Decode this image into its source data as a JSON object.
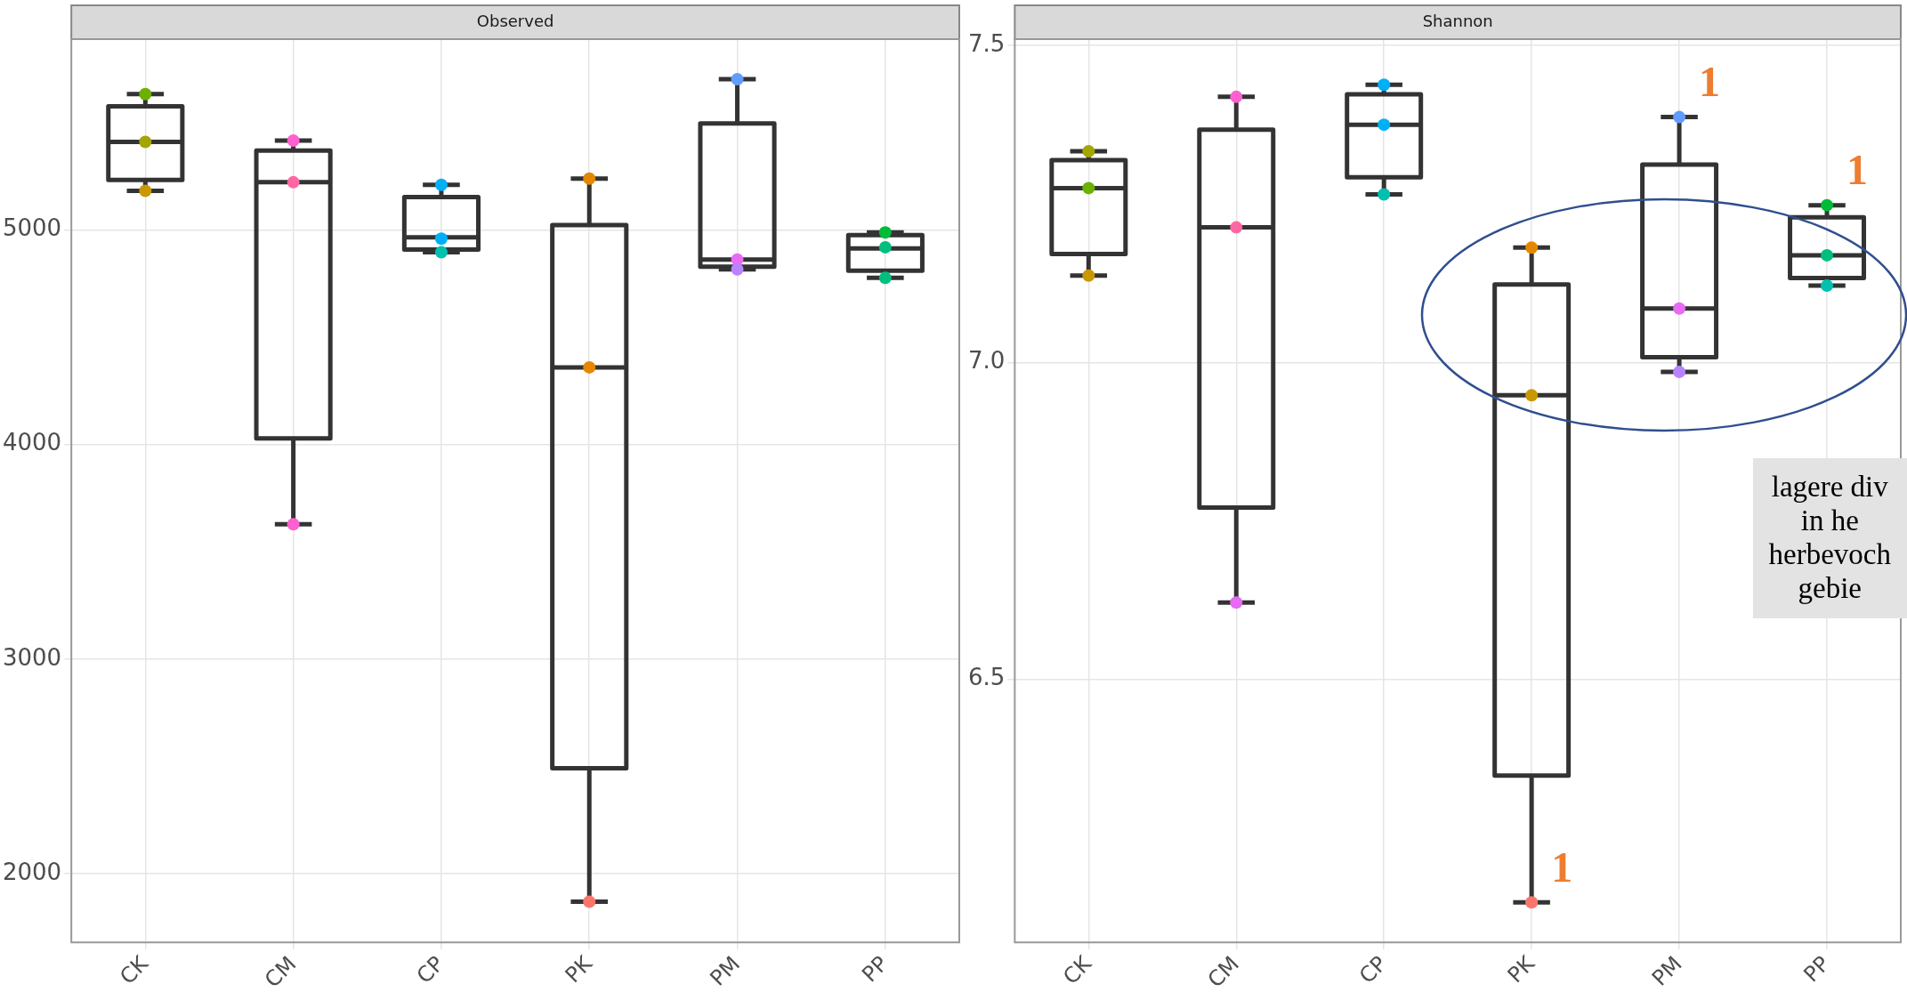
{
  "chart_data": [
    {
      "type": "box",
      "title": "Observed",
      "categories": [
        "CK",
        "CM",
        "CP",
        "PK",
        "PM",
        "PP"
      ],
      "boxes": [
        {
          "low": 5183,
          "q1": 5234,
          "median": 5411,
          "q3": 5577,
          "high": 5634
        },
        {
          "low": 3629,
          "q1": 4029,
          "median": 5223,
          "q3": 5371,
          "high": 5417
        },
        {
          "low": 4897,
          "q1": 4909,
          "median": 4966,
          "q3": 5154,
          "high": 5211
        },
        {
          "low": 1869,
          "q1": 2491,
          "median": 4360,
          "q3": 5023,
          "high": 5240
        },
        {
          "low": 4817,
          "q1": 4829,
          "median": 4863,
          "q3": 5497,
          "high": 5703
        },
        {
          "low": 4777,
          "q1": 4811,
          "median": 4914,
          "q3": 4977,
          "high": 4989
        }
      ],
      "series": [
        {
          "type": "scatter",
          "x": [
            "CK",
            "CK",
            "CK",
            "CM",
            "CM",
            "CM",
            "CP",
            "CP",
            "CP",
            "PK",
            "PK",
            "PK",
            "PM",
            "PM",
            "PM",
            "PP",
            "PP",
            "PP"
          ],
          "values": [
            5634,
            5411,
            5183,
            5417,
            5223,
            3629,
            5211,
            4960,
            4897,
            5240,
            4360,
            1869,
            5703,
            4863,
            4817,
            4989,
            4920,
            4777
          ],
          "colors": [
            "#6bb100",
            "#a3a500",
            "#c99800",
            "#fd61d1",
            "#ff67a4",
            "#fd61d1",
            "#00b0f6",
            "#00b0f6",
            "#00c0af",
            "#e58700",
            "#e58700",
            "#f8766d",
            "#619cff",
            "#e76bf3",
            "#b983ff",
            "#00ba38",
            "#00bf7d",
            "#00bf7d"
          ]
        }
      ],
      "ylim": [
        1680,
        5890
      ],
      "yticks": [
        2000,
        3000,
        4000,
        5000
      ],
      "grid": true,
      "marker": "circle"
    },
    {
      "type": "box",
      "title": "Shannon",
      "categories": [
        "CK",
        "CM",
        "CP",
        "PK",
        "PM",
        "PP"
      ],
      "boxes": [
        {
          "low": 7.137,
          "q1": 7.171,
          "median": 7.275,
          "q3": 7.319,
          "high": 7.333
        },
        {
          "low": 6.621,
          "q1": 6.771,
          "median": 7.213,
          "q3": 7.367,
          "high": 7.419
        },
        {
          "low": 7.265,
          "q1": 7.292,
          "median": 7.375,
          "q3": 7.423,
          "high": 7.438
        },
        {
          "low": 6.148,
          "q1": 6.348,
          "median": 6.948,
          "q3": 7.123,
          "high": 7.181
        },
        {
          "low": 6.985,
          "q1": 7.008,
          "median": 7.085,
          "q3": 7.312,
          "high": 7.387
        },
        {
          "low": 7.121,
          "q1": 7.133,
          "median": 7.169,
          "q3": 7.229,
          "high": 7.248
        }
      ],
      "series": [
        {
          "type": "scatter",
          "x": [
            "CK",
            "CK",
            "CK",
            "CM",
            "CM",
            "CM",
            "CP",
            "CP",
            "CP",
            "PK",
            "PK",
            "PK",
            "PM",
            "PM",
            "PM",
            "PP",
            "PP",
            "PP"
          ],
          "values": [
            7.333,
            7.275,
            7.137,
            7.419,
            7.213,
            6.621,
            7.438,
            7.375,
            7.265,
            7.181,
            6.948,
            6.148,
            7.387,
            7.085,
            6.985,
            7.248,
            7.169,
            7.121
          ],
          "colors": [
            "#a3a500",
            "#6bb100",
            "#c99800",
            "#fd61d1",
            "#ff67a4",
            "#e76bf3",
            "#00b0f6",
            "#00b0f6",
            "#00c0af",
            "#e58700",
            "#c99800",
            "#f8766d",
            "#619cff",
            "#e76bf3",
            "#b983ff",
            "#00ba38",
            "#00bf7d",
            "#00c0af"
          ]
        }
      ],
      "ylim": [
        6.085,
        7.51
      ],
      "yticks": [
        {
          "value": 6.5,
          "label": "6.5"
        },
        {
          "value": 7,
          "label": "7.0"
        },
        {
          "value": 7.5,
          "label": "7.5"
        }
      ],
      "grid": true,
      "marker": "circle",
      "annotations": [
        {
          "text": "1",
          "x": "PM",
          "y": 7.387
        },
        {
          "text": "1",
          "x": "PP",
          "y": 7.248
        },
        {
          "text": "1",
          "x": "PK",
          "y": 6.148
        },
        "lagere div\nin he\nherbevoch\ngebie"
      ]
    }
  ]
}
